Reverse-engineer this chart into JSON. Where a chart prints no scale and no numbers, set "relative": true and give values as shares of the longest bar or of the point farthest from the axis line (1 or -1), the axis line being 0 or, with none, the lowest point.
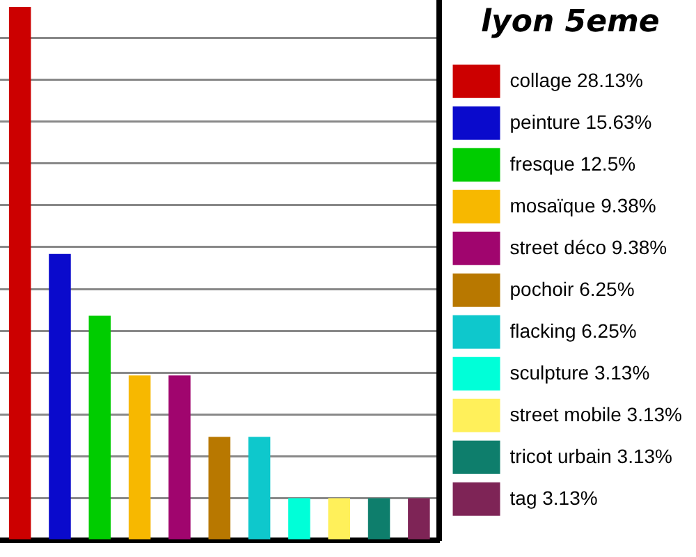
{
  "chart_data": {
    "type": "bar",
    "legend_title": "lyon 5eme",
    "relative": true,
    "categories": [
      null,
      null,
      null,
      null,
      null,
      null,
      null,
      null,
      null,
      null,
      null
    ],
    "series": [
      {
        "name": "collage 28.13%",
        "color": "#cc0000",
        "values": [
          1,
          null,
          null,
          null,
          null,
          null,
          null,
          null,
          null,
          null,
          null
        ]
      },
      {
        "name": "peinture 15.63%",
        "color": "#0a0acc",
        "values": [
          null,
          0.537,
          null,
          null,
          null,
          null,
          null,
          null,
          null,
          null,
          null
        ]
      },
      {
        "name": "fresque 12.5%",
        "color": "#00cc00",
        "values": [
          null,
          null,
          0.421,
          null,
          null,
          null,
          null,
          null,
          null,
          null,
          null
        ]
      },
      {
        "name": "mosaïque 9.38%",
        "color": "#f7b800",
        "values": [
          null,
          null,
          null,
          0.309,
          null,
          null,
          null,
          null,
          null,
          null,
          null
        ]
      },
      {
        "name": "street déco 9.38%",
        "color": "#a0056e",
        "values": [
          null,
          null,
          null,
          null,
          0.309,
          null,
          null,
          null,
          null,
          null,
          null
        ]
      },
      {
        "name": "pochoir 6.25%",
        "color": "#b87800",
        "values": [
          null,
          null,
          null,
          null,
          null,
          0.194,
          null,
          null,
          null,
          null,
          null
        ]
      },
      {
        "name": "flacking 6.25%",
        "color": "#0ec8cc",
        "values": [
          null,
          null,
          null,
          null,
          null,
          null,
          0.194,
          null,
          null,
          null,
          null
        ]
      },
      {
        "name": "sculpture 3.13%",
        "color": "#00ffd8",
        "values": [
          null,
          null,
          null,
          null,
          null,
          null,
          null,
          0.079,
          null,
          null,
          null
        ]
      },
      {
        "name": "street mobile 3.13%",
        "color": "#fff05a",
        "values": [
          null,
          null,
          null,
          null,
          null,
          null,
          null,
          null,
          0.079,
          null,
          null
        ]
      },
      {
        "name": "tricot urbain 3.13%",
        "color": "#0e7e6c",
        "values": [
          null,
          null,
          null,
          null,
          null,
          null,
          null,
          null,
          null,
          0.079,
          null
        ]
      },
      {
        "name": "tag 3.13%",
        "color": "#7e2456",
        "values": [
          null,
          null,
          null,
          null,
          null,
          null,
          null,
          null,
          null,
          null,
          0.079
        ]
      }
    ],
    "stacked": true,
    "grid": "y",
    "legend": "right",
    "tick_labels": false
  }
}
